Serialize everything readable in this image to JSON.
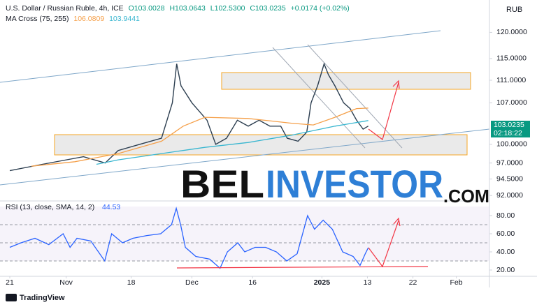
{
  "header": {
    "symbol": "U.S. Dollar / Russian Ruble, 4h, ICE",
    "open": "O103.0028",
    "high": "H103.0643",
    "low": "L102.5300",
    "close": "C103.0235",
    "change": "+0.0174 (+0.02%)",
    "indicator": "MA Cross (75, 255)",
    "ma_fast": "106.0809",
    "ma_slow": "103.9441",
    "currency": "RUB"
  },
  "chart_data": [
    {
      "type": "line",
      "log_scale": true,
      "grid": false,
      "xlim": [
        -2.26,
        110.65
      ],
      "ylim": [
        91.5,
        126.5
      ],
      "xticks": [
        {
          "value": 0,
          "label": "21"
        },
        {
          "value": 13,
          "label": "Nov"
        },
        {
          "value": 28,
          "label": "18"
        },
        {
          "value": 42,
          "label": "Dec"
        },
        {
          "value": 56,
          "label": "16"
        },
        {
          "value": 72,
          "label": "2025"
        },
        {
          "value": 82.5,
          "label": "13"
        },
        {
          "value": 93,
          "label": "22"
        },
        {
          "value": 103,
          "label": "Feb"
        }
      ],
      "yticks": [
        {
          "value": 92,
          "label": "92.0000"
        },
        {
          "value": 94.5,
          "label": "94.5000"
        },
        {
          "value": 97,
          "label": "97.0000"
        },
        {
          "value": 100,
          "label": "100.0000"
        },
        {
          "value": 107,
          "label": "107.0000"
        },
        {
          "value": 111,
          "label": "111.0000"
        },
        {
          "value": 115,
          "label": "115.0000"
        },
        {
          "value": 120,
          "label": "120.0000"
        }
      ],
      "last_price_label": "103.0235",
      "countdown": "02:18:22",
      "series": [
        {
          "color": "#2c3e50",
          "x": [
            0,
            7.5,
            17,
            22,
            25,
            30,
            35,
            37.5,
            38.5,
            39.5,
            42,
            45.5,
            47.5,
            50,
            52.5,
            55,
            57.5,
            60,
            62.5,
            64,
            66.5,
            68.5,
            69.5,
            71,
            72.5,
            73.5,
            75,
            77,
            78.5,
            80,
            81.5,
            82.7
          ],
          "values": [
            95.8,
            96.8,
            98,
            97,
            99,
            100,
            101,
            107,
            114,
            110,
            107,
            104,
            100,
            101,
            104,
            103,
            104,
            103,
            103,
            101,
            100.5,
            102,
            107,
            110,
            114,
            112,
            110,
            107,
            106,
            104,
            102.5,
            103.02
          ]
        },
        {
          "color": "#f5a04a",
          "x": [
            5,
            15,
            25,
            35,
            40,
            45,
            55,
            65,
            70,
            75,
            80,
            82.7
          ],
          "values": [
            96.5,
            97.2,
            98.5,
            100.5,
            103,
            104.5,
            104.3,
            103.5,
            103.2,
            104.5,
            106,
            106.08
          ]
        },
        {
          "color": "#38b6d0",
          "x": [
            20,
            25,
            35,
            45,
            55,
            65,
            75,
            82.7
          ],
          "values": [
            96.8,
            97.5,
            98.5,
            99.5,
            100.3,
            101.5,
            103,
            103.94
          ]
        }
      ]
    },
    {
      "type": "line",
      "title": "RSI (13, close, SMA, 14, 2)",
      "last_value": "44.53",
      "xlim": [
        -2.26,
        110.65
      ],
      "ylim": [
        10,
        94.6
      ],
      "yticks": [
        {
          "value": 20,
          "label": "20.00"
        },
        {
          "value": 40,
          "label": "40.00"
        },
        {
          "value": 60,
          "label": "60.00"
        },
        {
          "value": 80,
          "label": "80.00"
        }
      ],
      "levels": [
        30,
        50,
        70
      ],
      "series": [
        {
          "color": "#2962ff",
          "x": [
            0,
            2.6,
            5.8,
            9,
            12.3,
            13.9,
            15.5,
            18.7,
            21.9,
            23.5,
            26,
            28.4,
            31.6,
            34.8,
            37.3,
            38.4,
            39.4,
            40.5,
            42.9,
            46.1,
            48.5,
            50.2,
            52.6,
            54.2,
            56.6,
            59,
            61.5,
            63.9,
            66.3,
            68.7,
            70.3,
            72.3,
            74.4,
            76.8,
            79.2,
            80.8,
            82,
            82.7
          ],
          "values": [
            45,
            50,
            55,
            48,
            60,
            45,
            55,
            52,
            30,
            60,
            50,
            55,
            58,
            60,
            70,
            88,
            70,
            45,
            35,
            32,
            22,
            40,
            50,
            40,
            45,
            45,
            40,
            30,
            38,
            80,
            65,
            75,
            65,
            40,
            35,
            25,
            38,
            44.53
          ]
        }
      ]
    }
  ],
  "watermark": {
    "part1": "BEL",
    "part2": "INVESTOR",
    "part3": ".COM"
  },
  "footer": {
    "brand": "TradingView"
  }
}
